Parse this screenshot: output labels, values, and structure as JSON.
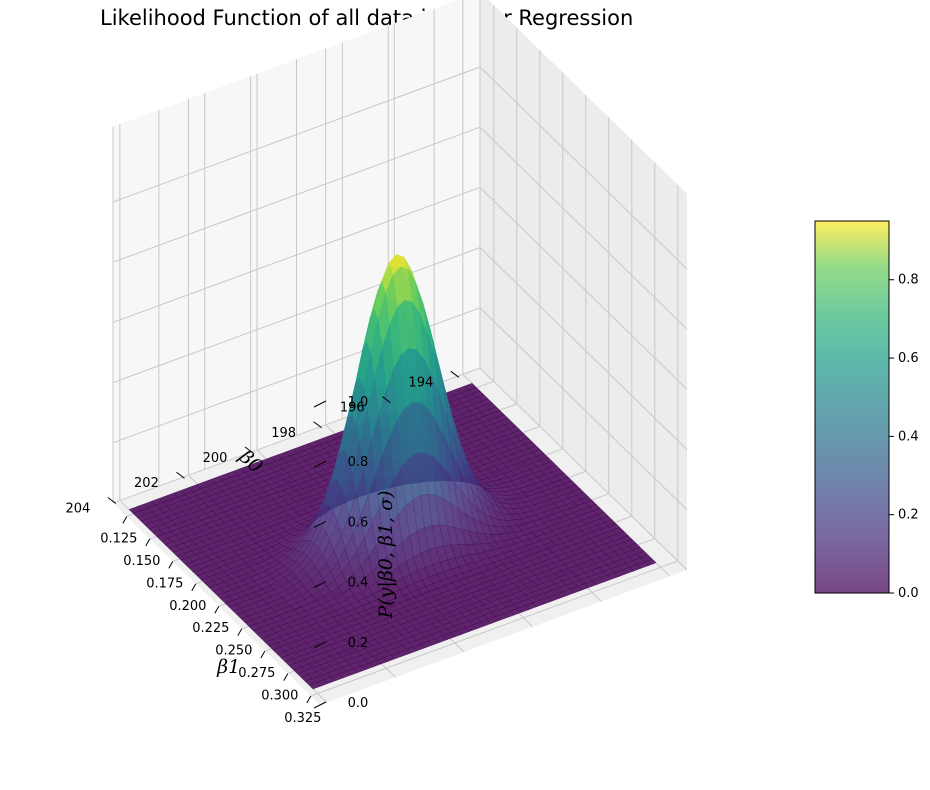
{
  "title": "Likelihood Function of all data in Linear Regression",
  "chart_data": {
    "type": "surface3d",
    "title": "Likelihood Function of all data in Linear Regression",
    "x_axis": {
      "name": "beta1",
      "label": "β1",
      "range": [
        0.11,
        0.335
      ],
      "ticks": [
        "0.125",
        "0.150",
        "0.175",
        "0.200",
        "0.225",
        "0.250",
        "0.275",
        "0.300",
        "0.325"
      ]
    },
    "y_axis": {
      "name": "beta0",
      "label": "β0",
      "range": [
        193.5,
        204.2
      ],
      "ticks": [
        "194",
        "196",
        "198",
        "200",
        "202",
        "204"
      ]
    },
    "z_axis": {
      "label": "P(y|β0, β1, σ)",
      "range": [
        0,
        1.0
      ],
      "ticks": [
        "0.0",
        "0.2",
        "0.4",
        "0.6",
        "0.8",
        "1.0"
      ]
    },
    "surface": {
      "peak": {
        "beta0": 199.0,
        "beta1": 0.225,
        "value": 0.95
      },
      "spread_beta0": 1.1,
      "spread_beta1": 0.015,
      "correlation": 0.0,
      "colormap": "viridis",
      "alpha": 0.7
    },
    "colorbar": {
      "range": [
        0,
        0.95
      ],
      "ticks": [
        "0.0",
        "0.2",
        "0.4",
        "0.6",
        "0.8"
      ]
    },
    "grid": true,
    "pane_color": "#f2f2f2"
  }
}
